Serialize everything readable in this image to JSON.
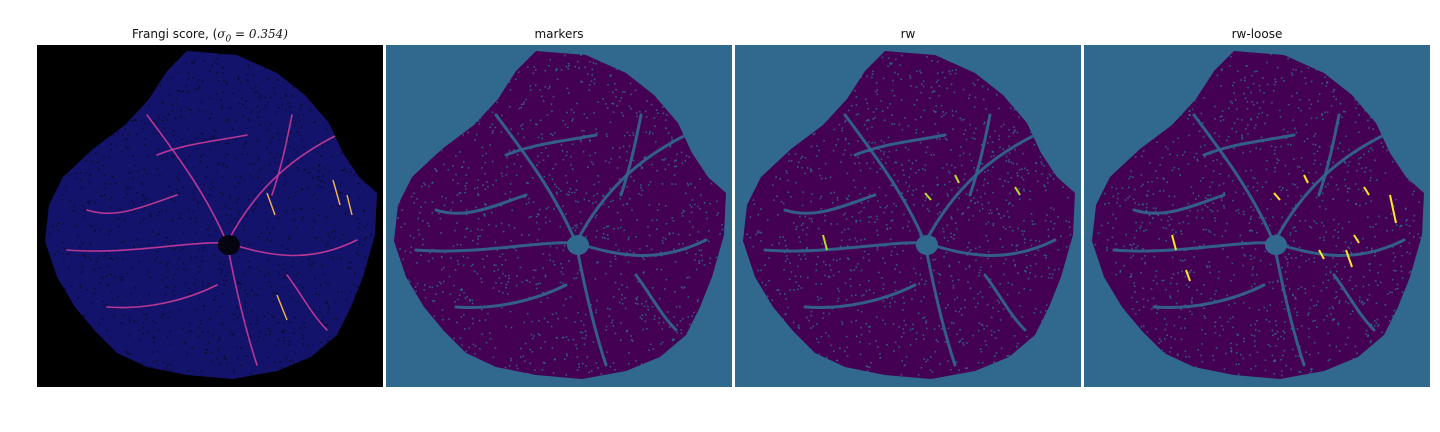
{
  "figure": {
    "panels": [
      {
        "id": "frangi",
        "title_prefix": "Frangi score, (",
        "title_symbol": "σ",
        "title_subscript": "0",
        "title_suffix": " = 0.354)",
        "background": "#000000",
        "image_colors": {
          "field": "#14136b",
          "speckle": "#0a0a2a",
          "vessel": "#c83c9a",
          "vessel_hot": "#f5b74a"
        }
      },
      {
        "id": "markers",
        "title": "markers",
        "background": "#31688e",
        "image_colors": {
          "field": "#440154",
          "speckle": "#31688e",
          "vessel": "#31688e"
        }
      },
      {
        "id": "rw",
        "title": "rw",
        "background": "#31688e",
        "image_colors": {
          "field": "#440154",
          "speckle": "#31688e",
          "vessel": "#31688e",
          "highlight": "#b5de2b"
        }
      },
      {
        "id": "rw-loose",
        "title": "rw-loose",
        "background": "#31688e",
        "image_colors": {
          "field": "#440154",
          "speckle": "#31688e",
          "vessel": "#31688e",
          "highlight": "#fde725"
        }
      }
    ]
  }
}
